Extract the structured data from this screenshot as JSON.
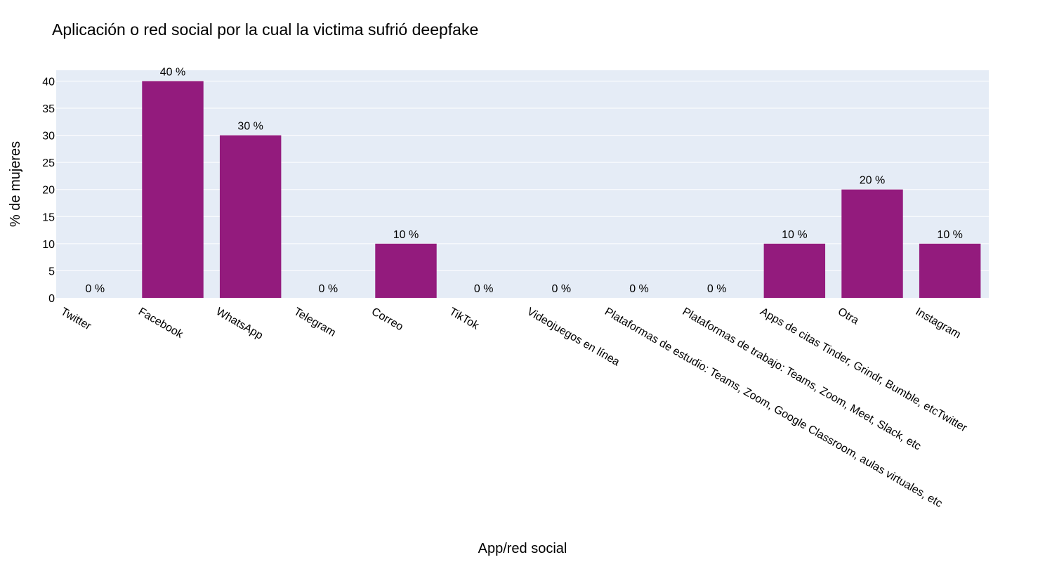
{
  "chart_data": {
    "type": "bar",
    "title": "Aplicación o red social por la cual la victima sufrió deepfake",
    "xlabel": "App/red social",
    "ylabel": "% de mujeres",
    "categories": [
      "Twitter",
      "Facebook",
      "WhatsApp",
      "Telegram",
      "Correo",
      "TikTok",
      "Videojuegos en línea",
      "Plataformas de estudio: Teams, Zoom, Google Classroom, aulas virtuales, etc",
      "Plataformas de trabajo: Teams, Zoom, Meet, Slack, etc",
      "Apps de citas Tinder, Grindr, Bumble, etcTwitter",
      "Otra",
      "Instagram"
    ],
    "values": [
      0,
      40,
      30,
      0,
      10,
      0,
      0,
      0,
      0,
      10,
      20,
      10
    ],
    "data_labels": [
      "0 %",
      "40 %",
      "30 %",
      "0 %",
      "10 %",
      "0 %",
      "0 %",
      "0 %",
      "0 %",
      "10 %",
      "20 %",
      "10 %"
    ],
    "ylim": [
      0,
      42
    ],
    "yticks": [
      0,
      5,
      10,
      15,
      20,
      25,
      30,
      35,
      40
    ],
    "grid": true,
    "bar_color": "#931b7d",
    "plot_bg": "#e5ecf6"
  }
}
